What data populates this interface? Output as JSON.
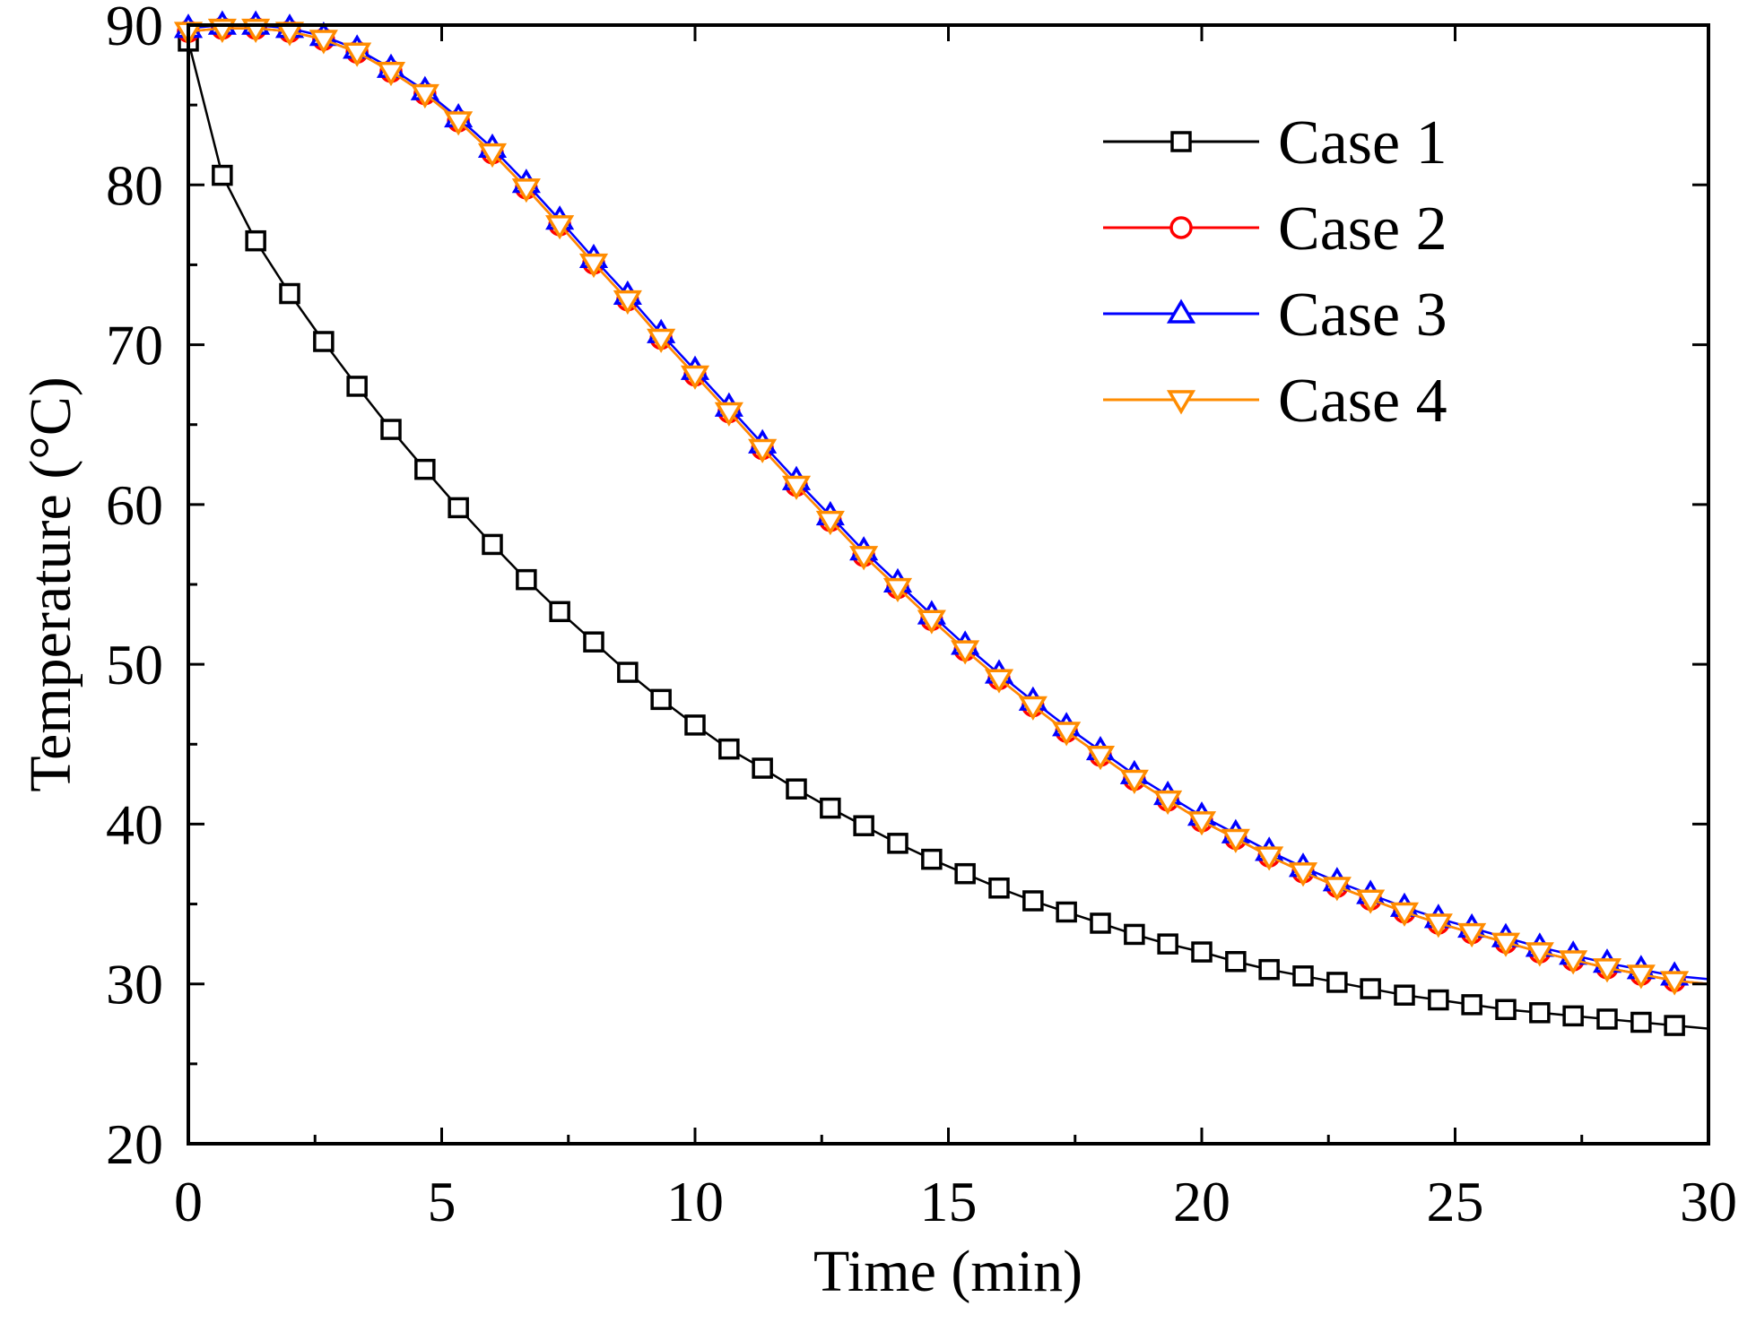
{
  "chart_data": {
    "type": "line",
    "title": "",
    "xlabel": "Time (min)",
    "ylabel": "Temperature (°C)",
    "xlim": [
      0,
      30
    ],
    "ylim": [
      20,
      90
    ],
    "xticks": [
      0,
      5,
      10,
      15,
      20,
      25,
      30
    ],
    "yticks": [
      20,
      30,
      40,
      50,
      60,
      70,
      80,
      90
    ],
    "grid": false,
    "legend_position": "top-right",
    "series": [
      {
        "name": "Case 1",
        "color": "#000000",
        "marker": "square",
        "x": [
          0,
          0.67,
          1.33,
          2,
          2.67,
          3.33,
          4,
          4.67,
          5.33,
          6,
          6.67,
          7.33,
          8,
          8.67,
          9.33,
          10,
          10.67,
          11.33,
          12,
          12.67,
          13.33,
          14,
          14.67,
          15.33,
          16,
          16.67,
          17.33,
          18,
          18.67,
          19.33,
          20,
          20.67,
          21.33,
          22,
          22.67,
          23.33,
          24,
          24.67,
          25.33,
          26,
          26.67,
          27.33,
          28,
          28.67,
          29.33
        ],
        "y": [
          89,
          80.6,
          76.5,
          73.2,
          70.2,
          67.4,
          64.7,
          62.2,
          59.8,
          57.5,
          55.3,
          53.3,
          51.4,
          49.5,
          47.8,
          46.2,
          44.7,
          43.5,
          42.2,
          41.0,
          39.9,
          38.8,
          37.8,
          36.9,
          36.0,
          35.2,
          34.5,
          33.8,
          33.1,
          32.5,
          32.0,
          31.4,
          30.9,
          30.5,
          30.1,
          29.7,
          29.3,
          29.0,
          28.7,
          28.4,
          28.2,
          28.0,
          27.8,
          27.6,
          27.4
        ]
      },
      {
        "name": "Case 2",
        "color": "#ff0000",
        "marker": "circle",
        "x": [
          0,
          0.67,
          1.33,
          2,
          2.67,
          3.33,
          4,
          4.67,
          5.33,
          6,
          6.67,
          7.33,
          8,
          8.67,
          9.33,
          10,
          10.67,
          11.33,
          12,
          12.67,
          13.33,
          14,
          14.67,
          15.33,
          16,
          16.67,
          17.33,
          18,
          18.67,
          19.33,
          20,
          20.67,
          21.33,
          22,
          22.67,
          23.33,
          24,
          24.67,
          25.33,
          26,
          26.67,
          27.33,
          28,
          28.67,
          29.33
        ],
        "y": [
          89.6,
          89.8,
          89.8,
          89.6,
          89.1,
          88.3,
          87.1,
          85.7,
          84.0,
          82.0,
          79.8,
          77.5,
          75.1,
          72.8,
          70.4,
          68.1,
          65.8,
          63.5,
          61.2,
          59.0,
          56.8,
          54.8,
          52.8,
          50.9,
          49.1,
          47.4,
          45.8,
          44.3,
          42.8,
          41.5,
          40.2,
          39.1,
          38.0,
          37.0,
          36.1,
          35.3,
          34.5,
          33.8,
          33.2,
          32.6,
          32.0,
          31.5,
          31.0,
          30.6,
          30.2
        ]
      },
      {
        "name": "Case 3",
        "color": "#0000ff",
        "marker": "triangle-up",
        "x": [
          0,
          0.67,
          1.33,
          2,
          2.67,
          3.33,
          4,
          4.67,
          5.33,
          6,
          6.67,
          7.33,
          8,
          8.67,
          9.33,
          10,
          10.67,
          11.33,
          12,
          12.67,
          13.33,
          14,
          14.67,
          15.33,
          16,
          16.67,
          17.33,
          18,
          18.67,
          19.33,
          20,
          20.67,
          21.33,
          22,
          22.67,
          23.33,
          24,
          24.67,
          25.33,
          26,
          26.67,
          27.33,
          28,
          28.67,
          29.33
        ],
        "y": [
          89.8,
          90.0,
          90.0,
          89.8,
          89.3,
          88.5,
          87.3,
          85.9,
          84.2,
          82.3,
          80.1,
          77.8,
          75.4,
          73.1,
          70.7,
          68.4,
          66.1,
          63.8,
          61.5,
          59.3,
          57.1,
          55.1,
          53.1,
          51.2,
          49.4,
          47.7,
          46.1,
          44.6,
          43.1,
          41.8,
          40.5,
          39.4,
          38.3,
          37.3,
          36.4,
          35.6,
          34.8,
          34.1,
          33.5,
          32.9,
          32.3,
          31.8,
          31.3,
          30.9,
          30.5
        ]
      },
      {
        "name": "Case 4",
        "color": "#ff8c00",
        "marker": "triangle-down",
        "x": [
          0,
          0.67,
          1.33,
          2,
          2.67,
          3.33,
          4,
          4.67,
          5.33,
          6,
          6.67,
          7.33,
          8,
          8.67,
          9.33,
          10,
          10.67,
          11.33,
          12,
          12.67,
          13.33,
          14,
          14.67,
          15.33,
          16,
          16.67,
          17.33,
          18,
          18.67,
          19.33,
          20,
          20.67,
          21.33,
          22,
          22.67,
          23.33,
          24,
          24.67,
          25.33,
          26,
          26.67,
          27.33,
          28,
          28.67,
          29.33
        ],
        "y": [
          89.6,
          89.8,
          89.8,
          89.6,
          89.1,
          88.3,
          87.1,
          85.7,
          84.0,
          82.0,
          79.8,
          77.5,
          75.1,
          72.8,
          70.4,
          68.1,
          65.8,
          63.5,
          61.2,
          59.0,
          56.8,
          54.8,
          52.8,
          50.9,
          49.1,
          47.4,
          45.8,
          44.3,
          42.8,
          41.5,
          40.2,
          39.1,
          38.0,
          37.0,
          36.1,
          35.3,
          34.5,
          33.8,
          33.2,
          32.6,
          32.0,
          31.5,
          31.0,
          30.6,
          30.2
        ]
      }
    ]
  }
}
